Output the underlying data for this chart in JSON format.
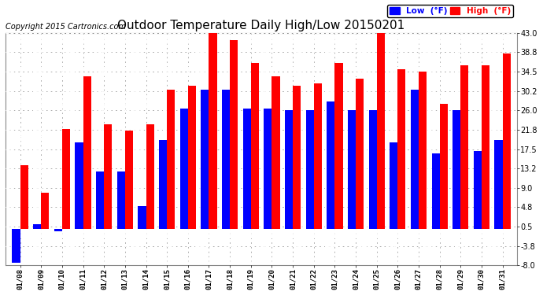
{
  "title": "Outdoor Temperature Daily High/Low 20150201",
  "copyright": "Copyright 2015 Cartronics.com",
  "legend_low": "Low  (°F)",
  "legend_high": "High  (°F)",
  "dates": [
    "01/08",
    "01/09",
    "01/10",
    "01/11",
    "01/12",
    "01/13",
    "01/14",
    "01/15",
    "01/16",
    "01/17",
    "01/18",
    "01/19",
    "01/20",
    "01/21",
    "01/22",
    "01/23",
    "01/24",
    "01/25",
    "01/26",
    "01/27",
    "01/28",
    "01/29",
    "01/30",
    "01/31"
  ],
  "highs": [
    14.0,
    8.0,
    22.0,
    33.5,
    23.0,
    21.5,
    23.0,
    30.5,
    31.5,
    43.0,
    41.5,
    36.5,
    33.5,
    31.5,
    32.0,
    36.5,
    33.0,
    43.0,
    35.0,
    34.5,
    27.5,
    36.0,
    36.0,
    38.5
  ],
  "lows": [
    -7.5,
    1.0,
    -0.5,
    19.0,
    12.5,
    12.5,
    5.0,
    19.5,
    26.5,
    30.5,
    30.5,
    26.5,
    26.5,
    26.0,
    26.0,
    28.0,
    26.0,
    26.0,
    19.0,
    30.5,
    16.5,
    26.0,
    17.0,
    19.5
  ],
  "high_color": "#FF0000",
  "low_color": "#0000FF",
  "background_color": "#FFFFFF",
  "plot_bg_color": "#FFFFFF",
  "grid_color": "#AAAAAA",
  "ymin": -8.0,
  "ymax": 43.0,
  "yticks": [
    -8.0,
    -3.8,
    0.5,
    4.8,
    9.0,
    13.2,
    17.5,
    21.8,
    26.0,
    30.2,
    34.5,
    38.8,
    43.0
  ],
  "title_fontsize": 11,
  "copyright_fontsize": 7,
  "bar_width": 0.38
}
